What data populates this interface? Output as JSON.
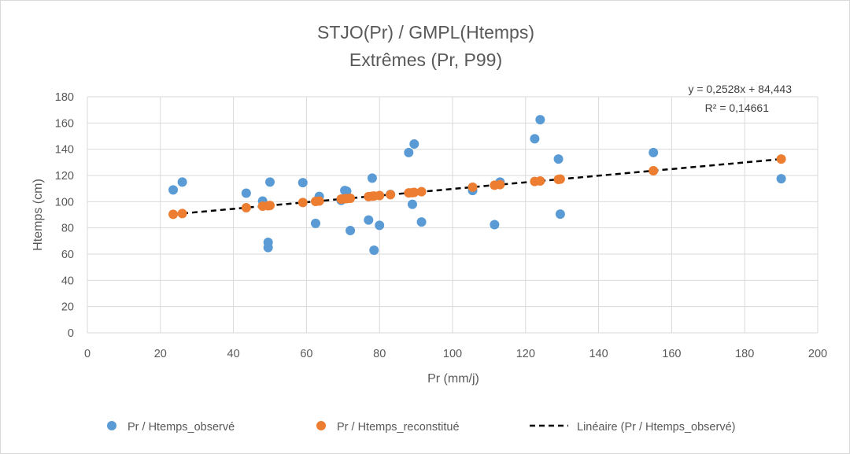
{
  "chart_data": {
    "type": "scatter",
    "title": "STJO(Pr) / GMPL(Htemps)",
    "subtitle": "Extrêmes (Pr, P99)",
    "xlabel": "Pr (mm/j)",
    "ylabel": "Htemps (cm)",
    "xlim": [
      0,
      200
    ],
    "ylim": [
      0,
      180
    ],
    "x_ticks": [
      "0",
      "20",
      "40",
      "60",
      "80",
      "100",
      "120",
      "140",
      "160",
      "180",
      "200"
    ],
    "y_ticks": [
      "0",
      "20",
      "40",
      "60",
      "80",
      "100",
      "120",
      "140",
      "160",
      "180"
    ],
    "grid": true,
    "legend_position": "bottom",
    "series": [
      {
        "name": "Pr / Htemps_observé",
        "color": "#5b9bd5",
        "marker": "circle",
        "points": [
          [
            23.5,
            109
          ],
          [
            26,
            115
          ],
          [
            43.5,
            106.5
          ],
          [
            48,
            100.5
          ],
          [
            49.5,
            65
          ],
          [
            49.5,
            69
          ],
          [
            50,
            115
          ],
          [
            59,
            114.5
          ],
          [
            62.5,
            83.5
          ],
          [
            63.5,
            104
          ],
          [
            69.5,
            101
          ],
          [
            70.5,
            108.5
          ],
          [
            71,
            108
          ],
          [
            72,
            78
          ],
          [
            77,
            86
          ],
          [
            78,
            118
          ],
          [
            78.5,
            63
          ],
          [
            80,
            82
          ],
          [
            83,
            105.5
          ],
          [
            88,
            137.5
          ],
          [
            89,
            98
          ],
          [
            89.5,
            144
          ],
          [
            91.5,
            84.5
          ],
          [
            105.5,
            108.5
          ],
          [
            111.5,
            82.5
          ],
          [
            113,
            115
          ],
          [
            122.5,
            148
          ],
          [
            124,
            162.5
          ],
          [
            129,
            132.5
          ],
          [
            129.5,
            90.5
          ],
          [
            155,
            137.5
          ],
          [
            190,
            117.5
          ]
        ]
      },
      {
        "name": "Pr / Htemps_reconstitué",
        "color": "#ed7d31",
        "marker": "circle",
        "points": [
          [
            23.5,
            90.4
          ],
          [
            26,
            91
          ],
          [
            43.5,
            95.4
          ],
          [
            48,
            96.6
          ],
          [
            49.5,
            96.9
          ],
          [
            50,
            97.1
          ],
          [
            59,
            99.4
          ],
          [
            62.5,
            100.2
          ],
          [
            63.5,
            100.5
          ],
          [
            69.5,
            102
          ],
          [
            70.5,
            102.3
          ],
          [
            71,
            102.4
          ],
          [
            72,
            102.6
          ],
          [
            77,
            103.9
          ],
          [
            78,
            104.2
          ],
          [
            78.5,
            104.3
          ],
          [
            80,
            104.7
          ],
          [
            83,
            105.4
          ],
          [
            88,
            106.7
          ],
          [
            89,
            106.9
          ],
          [
            89.5,
            107.1
          ],
          [
            91.5,
            107.6
          ],
          [
            105.5,
            111.1
          ],
          [
            111.5,
            112.6
          ],
          [
            113,
            113
          ],
          [
            122.5,
            115.4
          ],
          [
            124,
            115.8
          ],
          [
            129,
            117
          ],
          [
            129.5,
            117.2
          ],
          [
            155,
            123.6
          ],
          [
            190,
            132.5
          ]
        ]
      },
      {
        "name": "Linéaire  (Pr / Htemps_observé)",
        "color": "#000000",
        "style": "dashed",
        "slope": 0.2528,
        "intercept": 84.443,
        "x_range": [
          23.5,
          190
        ]
      }
    ],
    "annotations": {
      "equation": "y = 0,2528x + 84,443",
      "r_squared": "R² = 0,14661"
    }
  }
}
